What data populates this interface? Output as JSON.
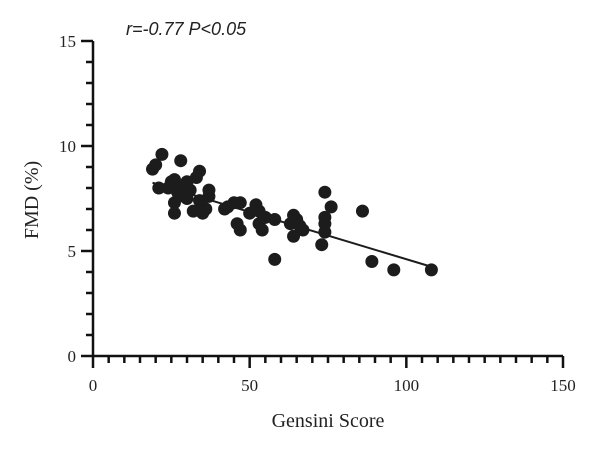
{
  "chart_data": {
    "type": "scatter",
    "annotation": "r=-0.77 P<0.05",
    "xlabel": "Gensini Score",
    "ylabel": "FMD (%)",
    "xlim": [
      0,
      150
    ],
    "ylim": [
      0,
      15
    ],
    "xticks": [
      0,
      50,
      100,
      150
    ],
    "yticks": [
      0,
      5,
      10,
      15
    ],
    "x_minor_step": 5,
    "y_minor_step": 1,
    "grid": false,
    "points": [
      {
        "x": 19,
        "y": 8.9
      },
      {
        "x": 20,
        "y": 9.1
      },
      {
        "x": 22,
        "y": 9.6
      },
      {
        "x": 21,
        "y": 8.0
      },
      {
        "x": 24,
        "y": 8.0
      },
      {
        "x": 25,
        "y": 8.3
      },
      {
        "x": 26,
        "y": 8.4
      },
      {
        "x": 26,
        "y": 7.3
      },
      {
        "x": 26,
        "y": 6.8
      },
      {
        "x": 27,
        "y": 7.8
      },
      {
        "x": 28,
        "y": 9.3
      },
      {
        "x": 28,
        "y": 8.0
      },
      {
        "x": 29,
        "y": 7.6
      },
      {
        "x": 30,
        "y": 8.3
      },
      {
        "x": 30,
        "y": 7.5
      },
      {
        "x": 31,
        "y": 7.9
      },
      {
        "x": 32,
        "y": 6.9
      },
      {
        "x": 33,
        "y": 8.5
      },
      {
        "x": 34,
        "y": 8.8
      },
      {
        "x": 34,
        "y": 7.4
      },
      {
        "x": 35,
        "y": 6.8
      },
      {
        "x": 35,
        "y": 7.1
      },
      {
        "x": 36,
        "y": 7.0
      },
      {
        "x": 37,
        "y": 7.9
      },
      {
        "x": 37,
        "y": 7.6
      },
      {
        "x": 42,
        "y": 7.0
      },
      {
        "x": 43,
        "y": 7.1
      },
      {
        "x": 45,
        "y": 7.3
      },
      {
        "x": 46,
        "y": 6.3
      },
      {
        "x": 47,
        "y": 6.0
      },
      {
        "x": 47,
        "y": 7.3
      },
      {
        "x": 50,
        "y": 6.8
      },
      {
        "x": 52,
        "y": 7.2
      },
      {
        "x": 53,
        "y": 6.9
      },
      {
        "x": 53,
        "y": 6.3
      },
      {
        "x": 54,
        "y": 6.0
      },
      {
        "x": 55,
        "y": 6.6
      },
      {
        "x": 58,
        "y": 6.5
      },
      {
        "x": 58,
        "y": 4.6
      },
      {
        "x": 63,
        "y": 6.3
      },
      {
        "x": 64,
        "y": 6.7
      },
      {
        "x": 64,
        "y": 5.7
      },
      {
        "x": 65,
        "y": 6.5
      },
      {
        "x": 66,
        "y": 6.2
      },
      {
        "x": 67,
        "y": 6.0
      },
      {
        "x": 73,
        "y": 5.3
      },
      {
        "x": 74,
        "y": 6.6
      },
      {
        "x": 74,
        "y": 6.3
      },
      {
        "x": 74,
        "y": 5.9
      },
      {
        "x": 74,
        "y": 7.8
      },
      {
        "x": 76,
        "y": 7.1
      },
      {
        "x": 86,
        "y": 6.9
      },
      {
        "x": 89,
        "y": 4.5
      },
      {
        "x": 96,
        "y": 4.1
      },
      {
        "x": 108,
        "y": 4.1
      }
    ],
    "regression_line": {
      "x": [
        19,
        108
      ],
      "y": [
        8.25,
        4.25
      ]
    }
  }
}
